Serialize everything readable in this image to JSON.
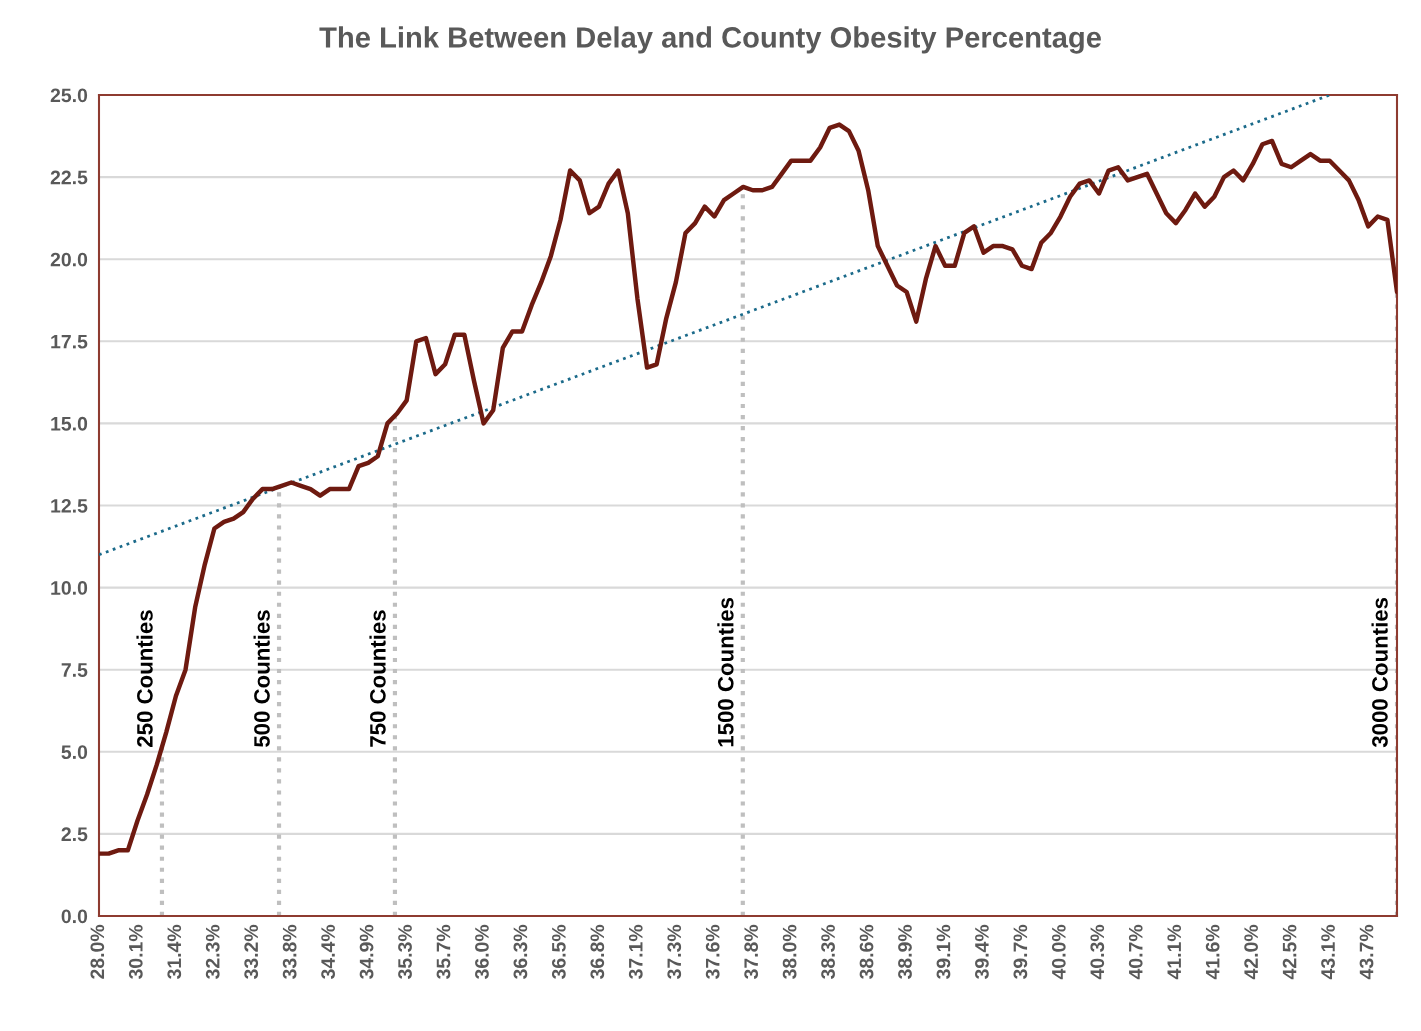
{
  "chart_data": {
    "type": "line",
    "title": "The Link Between Delay and County Obesity Percentage",
    "categories": [
      "28.0%",
      null,
      null,
      null,
      "30.1%",
      null,
      null,
      null,
      "31.4%",
      null,
      null,
      null,
      "32.3%",
      null,
      null,
      null,
      "33.2%",
      null,
      null,
      null,
      "33.8%",
      null,
      null,
      null,
      "34.4%",
      null,
      null,
      null,
      "34.9%",
      null,
      null,
      null,
      "35.3%",
      null,
      null,
      null,
      "35.7%",
      null,
      null,
      null,
      "36.0%",
      null,
      null,
      null,
      "36.3%",
      null,
      null,
      null,
      "36.5%",
      null,
      null,
      null,
      "36.8%",
      null,
      null,
      null,
      "37.1%",
      null,
      null,
      null,
      "37.3%",
      null,
      null,
      null,
      "37.6%",
      null,
      null,
      null,
      "37.8%",
      null,
      null,
      null,
      "38.0%",
      null,
      null,
      null,
      "38.3%",
      null,
      null,
      null,
      "38.6%",
      null,
      null,
      null,
      "38.9%",
      null,
      null,
      null,
      "39.1%",
      null,
      null,
      null,
      "39.4%",
      null,
      null,
      null,
      "39.7%",
      null,
      null,
      null,
      "40.0%",
      null,
      null,
      null,
      "40.3%",
      null,
      null,
      null,
      "40.7%",
      null,
      null,
      null,
      "41.1%",
      null,
      null,
      null,
      "41.6%",
      null,
      null,
      null,
      "42.0%",
      null,
      null,
      null,
      "42.5%",
      null,
      null,
      null,
      "43.1%",
      null,
      null,
      null,
      "43.7%",
      null,
      null,
      null
    ],
    "ylim": [
      0,
      25
    ],
    "yticks": [
      {
        "value": 0,
        "label": "0.0"
      },
      {
        "value": 2.5,
        "label": "2.5"
      },
      {
        "value": 5,
        "label": "5.0"
      },
      {
        "value": 7.5,
        "label": "7.5"
      },
      {
        "value": 10,
        "label": "10.0"
      },
      {
        "value": 12.5,
        "label": "12.5"
      },
      {
        "value": 15,
        "label": "15.0"
      },
      {
        "value": 17.5,
        "label": "17.5"
      },
      {
        "value": 20,
        "label": "20.0"
      },
      {
        "value": 22.5,
        "label": "22.5"
      },
      {
        "value": 25,
        "label": "25.0"
      }
    ],
    "grid": "y",
    "series": [
      {
        "color": "#6e1a10",
        "line_style": "solid",
        "values": [
          1.9,
          1.9,
          2.0,
          2.0,
          2.9,
          3.7,
          4.6,
          5.6,
          6.7,
          7.5,
          9.4,
          10.7,
          11.8,
          12.0,
          12.1,
          12.3,
          12.7,
          13.0,
          13.0,
          13.1,
          13.2,
          13.1,
          13.0,
          12.8,
          13.0,
          13.0,
          13.0,
          13.7,
          13.8,
          14.0,
          15.0,
          15.3,
          15.7,
          17.5,
          17.6,
          16.5,
          16.8,
          17.7,
          17.7,
          16.3,
          15.0,
          15.4,
          17.3,
          17.8,
          17.8,
          18.6,
          19.3,
          20.1,
          21.2,
          22.7,
          22.4,
          21.4,
          21.6,
          22.3,
          22.7,
          21.4,
          18.8,
          16.7,
          16.8,
          18.2,
          19.3,
          20.8,
          21.1,
          21.6,
          21.3,
          21.8,
          22.0,
          22.2,
          22.1,
          22.1,
          22.2,
          22.6,
          23.0,
          23.0,
          23.0,
          23.4,
          24.0,
          24.1,
          23.9,
          23.3,
          22.1,
          20.4,
          19.8,
          19.2,
          19.0,
          18.1,
          19.4,
          20.4,
          19.8,
          19.8,
          20.8,
          21.0,
          20.2,
          20.4,
          20.4,
          20.3,
          19.8,
          19.7,
          20.5,
          20.8,
          21.3,
          21.9,
          22.3,
          22.4,
          22.0,
          22.7,
          22.8,
          22.4,
          22.5,
          22.6,
          22.0,
          21.4,
          21.1,
          21.5,
          22.0,
          21.6,
          21.9,
          22.5,
          22.7,
          22.4,
          22.9,
          23.5,
          23.6,
          22.9,
          22.8,
          23.0,
          23.2,
          23.0,
          23.0,
          22.7,
          22.4,
          21.8,
          21.0,
          21.3,
          21.2,
          19.0
        ]
      },
      {
        "color": "#1b6a8a",
        "line_style": "dotted",
        "values": [
          11.0,
          null,
          null,
          null,
          null,
          null,
          null,
          null,
          null,
          null,
          null,
          null,
          null,
          null,
          null,
          null,
          null,
          null,
          null,
          null,
          null,
          null,
          null,
          null,
          null,
          null,
          null,
          null,
          null,
          null,
          null,
          null,
          null,
          null,
          null,
          null,
          null,
          null,
          null,
          null,
          null,
          null,
          null,
          null,
          null,
          null,
          null,
          null,
          null,
          null,
          null,
          null,
          null,
          null,
          null,
          null,
          null,
          null,
          null,
          null,
          null,
          null,
          null,
          null,
          null,
          null,
          null,
          null,
          null,
          null,
          null,
          null,
          null,
          null,
          null,
          null,
          null,
          null,
          null,
          null,
          null,
          null,
          null,
          null,
          null,
          null,
          null,
          null,
          null,
          null,
          null,
          null,
          null,
          null,
          null,
          null,
          null,
          null,
          null,
          null,
          null,
          null,
          null,
          null,
          null,
          null,
          null,
          null,
          null,
          null,
          null,
          null,
          null,
          null,
          null,
          null,
          null,
          null,
          null,
          null,
          null,
          null,
          null,
          null,
          null,
          null,
          null,
          null,
          25.0,
          null,
          null,
          null,
          null,
          null,
          null,
          null
        ]
      }
    ],
    "annotations": [
      "250 Counties",
      "500 Counties",
      "750 Counties",
      "1500 Counties",
      "3000 Counties"
    ]
  }
}
